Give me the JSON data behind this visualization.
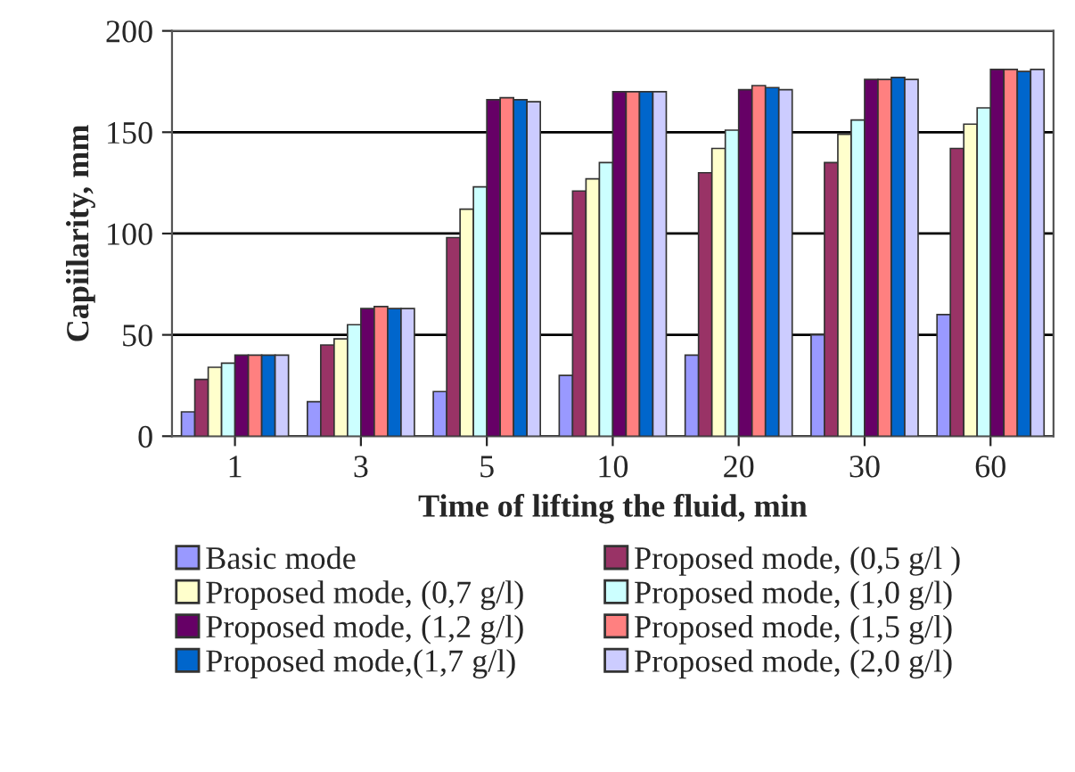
{
  "chart_data": {
    "type": "bar",
    "xlabel": "Time of lifting the fluid, min",
    "ylabel": "Capiilarity, mm",
    "categories": [
      "1",
      "3",
      "5",
      "10",
      "20",
      "30",
      "60"
    ],
    "series": [
      {
        "name": "Basic mode",
        "color": "#9999ff",
        "values": [
          12,
          17,
          22,
          30,
          40,
          50,
          60
        ]
      },
      {
        "name": "Proposed mode, (0,5 g/l )",
        "color": "#993366",
        "values": [
          28,
          45,
          98,
          121,
          130,
          135,
          142
        ]
      },
      {
        "name": "Proposed mode, (0,7 g/l)",
        "color": "#ffffcc",
        "values": [
          34,
          48,
          112,
          127,
          142,
          149,
          154
        ]
      },
      {
        "name": "Proposed mode, (1,0 g/l)",
        "color": "#ccffff",
        "values": [
          36,
          55,
          123,
          135,
          151,
          156,
          162
        ]
      },
      {
        "name": "Proposed mode, (1,2 g/l)",
        "color": "#660066",
        "values": [
          40,
          63,
          166,
          170,
          171,
          176,
          181
        ]
      },
      {
        "name": "Proposed mode, (1,5 g/l)",
        "color": "#ff8080",
        "values": [
          40,
          64,
          167,
          170,
          173,
          176,
          181
        ]
      },
      {
        "name": "Proposed mode,(1,7 g/l)",
        "color": "#0066cc",
        "values": [
          40,
          63,
          166,
          170,
          172,
          177,
          180
        ]
      },
      {
        "name": "Proposed mode, (2,0 g/l)",
        "color": "#ccccff",
        "values": [
          40,
          63,
          165,
          170,
          171,
          176,
          181
        ]
      }
    ],
    "ylim": [
      0,
      200
    ],
    "yticks": [
      0,
      50,
      100,
      150,
      200
    ],
    "grid": "y",
    "legend": "bottom"
  }
}
